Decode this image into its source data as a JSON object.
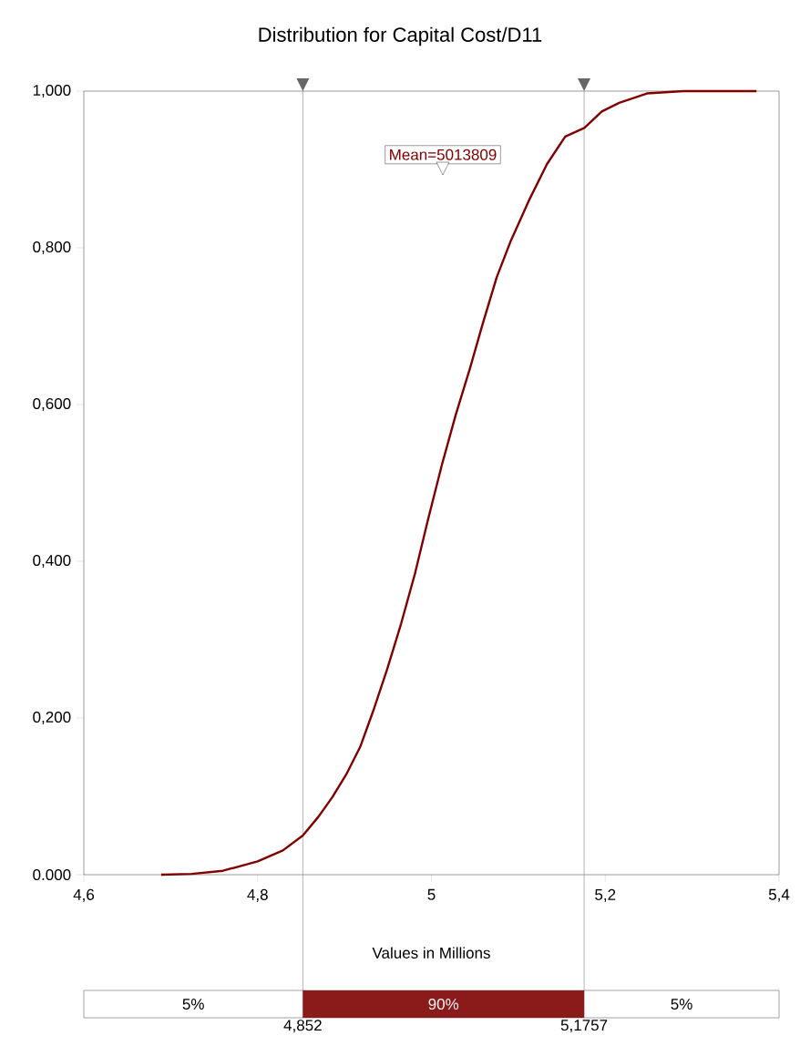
{
  "chart_data": {
    "type": "line",
    "title": "Distribution for Capital Cost/D11",
    "xlabel": "Values in Millions",
    "x": [
      4.689,
      4.724,
      4.76,
      4.8,
      4.829,
      4.852,
      4.87,
      4.886,
      4.902,
      4.918,
      4.933,
      4.949,
      4.965,
      4.981,
      4.996,
      5.012,
      5.028,
      5.044,
      5.059,
      5.075,
      5.091,
      5.112,
      5.133,
      5.154,
      5.176,
      5.196,
      5.216,
      5.248,
      5.29,
      5.374
    ],
    "values": [
      0,
      0.001,
      0.005,
      0.017,
      0.031,
      0.05,
      0.074,
      0.099,
      0.128,
      0.163,
      0.209,
      0.262,
      0.32,
      0.384,
      0.453,
      0.523,
      0.587,
      0.645,
      0.703,
      0.762,
      0.808,
      0.86,
      0.907,
      0.942,
      0.953,
      0.974,
      0.985,
      0.997,
      1,
      1
    ],
    "color": "#800000",
    "xlim": [
      4.6,
      5.4
    ],
    "ylim": [
      0,
      1
    ],
    "xticks": [
      {
        "value": 4.6,
        "label": "4,6"
      },
      {
        "value": 4.8,
        "label": "4,8"
      },
      5,
      {
        "value": 5.2,
        "label": "5,2"
      },
      {
        "value": 5.4,
        "label": "5,4"
      }
    ],
    "yticks": [
      {
        "value": 0,
        "label": "0.000"
      },
      {
        "value": 0.2,
        "label": "0,200"
      },
      {
        "value": 0.4,
        "label": "0,400"
      },
      {
        "value": 0.6,
        "label": "0,600"
      },
      {
        "value": 0.8,
        "label": "0,800"
      },
      {
        "value": 1,
        "label": "1,000"
      }
    ],
    "ref_lines": [
      {
        "axis": "x",
        "value": 4.852,
        "label": "4,852",
        "color": "#808080"
      },
      {
        "axis": "x",
        "value": 5.1757,
        "label": "5,1757",
        "color": "#808080"
      }
    ],
    "annotations": [
      "Mean=5013809",
      "5%",
      "90%",
      "5%"
    ]
  }
}
